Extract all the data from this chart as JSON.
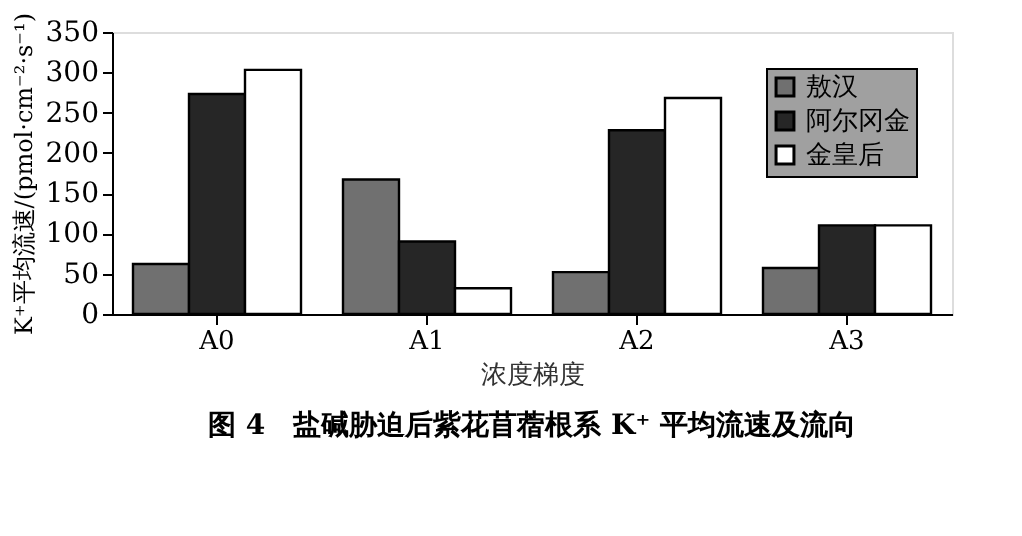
{
  "chart_data": {
    "type": "bar",
    "title": "图 4　盐碱胁迫后紫花苜蓿根系 K⁺ 平均流速及流向",
    "xlabel": "浓度梯度",
    "ylabel": "K⁺平均流速/(pmol·cm⁻²·s⁻¹)",
    "categories": [
      "A0",
      "A1",
      "A2",
      "A3"
    ],
    "series": [
      {
        "name": "敖汉",
        "color": "#707070",
        "values": [
          62,
          167,
          52,
          57
        ]
      },
      {
        "name": "阿尔冈金",
        "color": "#262626",
        "values": [
          273,
          90,
          228,
          110
        ]
      },
      {
        "name": "金皇后",
        "color": "#ffffff",
        "values": [
          303,
          32,
          268,
          110
        ]
      }
    ],
    "ylim": [
      0,
      350
    ],
    "yticks": [
      0,
      50,
      100,
      150,
      200,
      250,
      300,
      350
    ],
    "grid": false,
    "legend": "top right"
  }
}
